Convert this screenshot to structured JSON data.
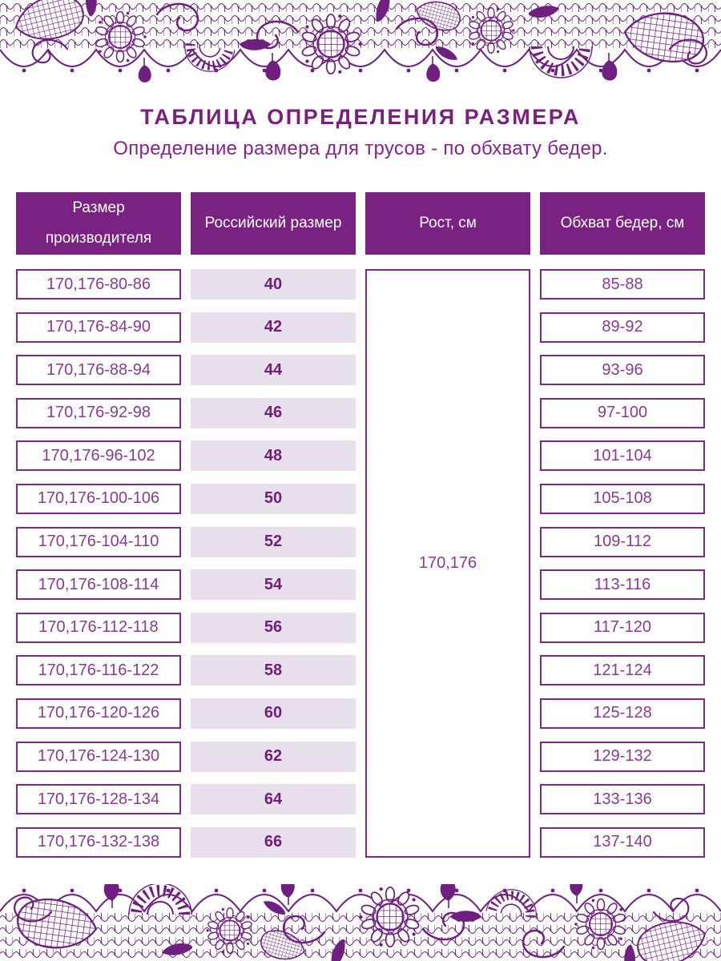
{
  "title": "ТАБЛИЦА ОПРЕДЕЛЕНИЯ РАЗМЕРА",
  "subtitle": "Определение размера для трусов - по обхвату бедер.",
  "decor": {
    "top_border": "floral-lace-pattern",
    "bottom_border": "floral-lace-pattern"
  },
  "colors": {
    "lace_purple": "#6e1f7f",
    "header_background": "#7a2282",
    "cell_border": "#7d2a85",
    "cell_text": "#8a3a91",
    "number_text": "#731c78",
    "lavender_fill": "#e8e0ed",
    "title_text": "#7a1f7e"
  },
  "table": {
    "columns": [
      "Размер производителя",
      "Российский размер",
      "Рост, см",
      "Обхват бедер, см"
    ],
    "height_value": "170,176",
    "rows": [
      {
        "manufacturer": "170,176-80-86",
        "ru": "40",
        "hips": "85-88"
      },
      {
        "manufacturer": "170,176-84-90",
        "ru": "42",
        "hips": "89-92"
      },
      {
        "manufacturer": "170,176-88-94",
        "ru": "44",
        "hips": "93-96"
      },
      {
        "manufacturer": "170,176-92-98",
        "ru": "46",
        "hips": "97-100"
      },
      {
        "manufacturer": "170,176-96-102",
        "ru": "48",
        "hips": "101-104"
      },
      {
        "manufacturer": "170,176-100-106",
        "ru": "50",
        "hips": "105-108"
      },
      {
        "manufacturer": "170,176-104-110",
        "ru": "52",
        "hips": "109-112"
      },
      {
        "manufacturer": "170,176-108-114",
        "ru": "54",
        "hips": "113-116"
      },
      {
        "manufacturer": "170,176-112-118",
        "ru": "56",
        "hips": "117-120"
      },
      {
        "manufacturer": "170,176-116-122",
        "ru": "58",
        "hips": "121-124"
      },
      {
        "manufacturer": "170,176-120-126",
        "ru": "60",
        "hips": "125-128"
      },
      {
        "manufacturer": "170,176-124-130",
        "ru": "62",
        "hips": "129-132"
      },
      {
        "manufacturer": "170,176-128-134",
        "ru": "64",
        "hips": "133-136"
      },
      {
        "manufacturer": "170,176-132-138",
        "ru": "66",
        "hips": "137-140"
      }
    ]
  }
}
